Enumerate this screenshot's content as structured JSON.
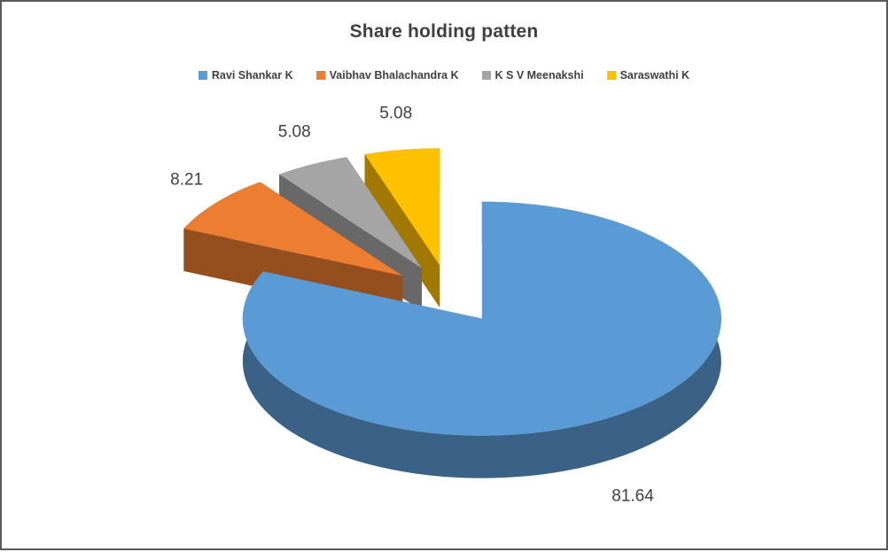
{
  "chart": {
    "background": "#ffffff",
    "border_color": "#595959"
  },
  "chart_data": {
    "type": "pie",
    "effect": "3d-exploded-pie",
    "title": "Share holding patten",
    "labels": [
      "Ravi Shankar K",
      "Vaibhav Bhalachandra K",
      "K S V Meenakshi",
      "Saraswathi K"
    ],
    "values": [
      81.64,
      8.21,
      5.08,
      5.08
    ],
    "data_labels": [
      "81.64",
      "8.21",
      "5.08",
      "5.08"
    ],
    "colors": [
      "#5B9BD5",
      "#ED7D31",
      "#A5A5A5",
      "#FFC000"
    ],
    "start_angle_deg": 0,
    "direction": "clockwise",
    "legend_position": "top",
    "title_color": "#404040",
    "label_color": "#404040",
    "legend_text_color": "#404040"
  }
}
